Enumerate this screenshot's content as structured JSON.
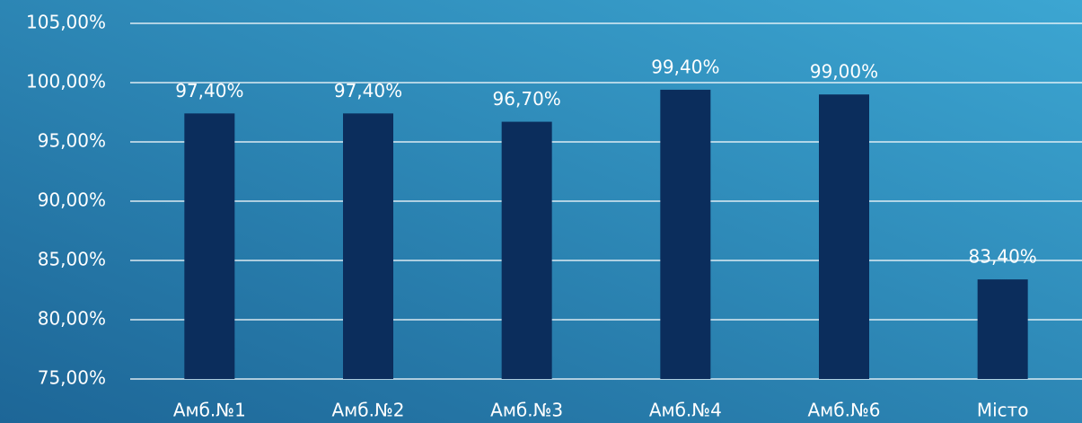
{
  "chart_data": {
    "type": "bar",
    "categories": [
      "Амб.№1",
      "Амб.№2",
      "Амб.№3",
      "Амб.№4",
      "Амб.№6",
      "Місто"
    ],
    "values": [
      97.4,
      97.4,
      96.7,
      99.4,
      99.0,
      83.4
    ],
    "value_labels": [
      "97,40%",
      "97,40%",
      "96,70%",
      "99,40%",
      "99,00%",
      "83,40%"
    ],
    "color": "#0b2d5c",
    "ylim": [
      75,
      105
    ],
    "yticks": [
      {
        "value": 75,
        "label": "75,00%"
      },
      {
        "value": 80,
        "label": "80,00%"
      },
      {
        "value": 85,
        "label": "85,00%"
      },
      {
        "value": 90,
        "label": "90,00%"
      },
      {
        "value": 95,
        "label": "95,00%"
      },
      {
        "value": 100,
        "label": "100,00%"
      },
      {
        "value": 105,
        "label": "105,00%"
      }
    ],
    "grid": true
  }
}
